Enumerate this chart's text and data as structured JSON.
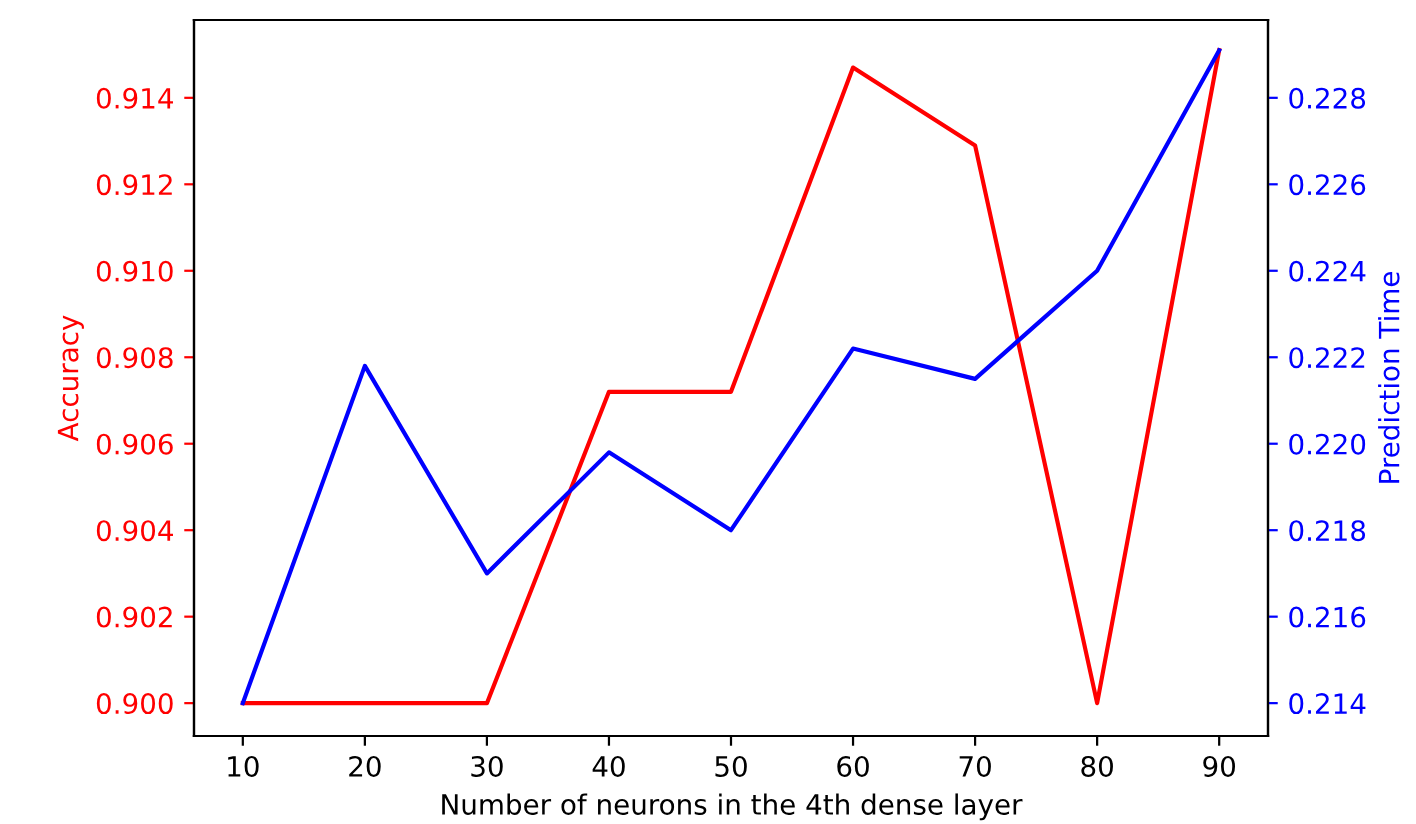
{
  "chart_data": {
    "type": "line",
    "xlabel": "Number of neurons in the 4th dense layer",
    "ylabel": "Accuracy",
    "y2label": "Prediction Time",
    "x": [
      10,
      20,
      30,
      40,
      50,
      60,
      70,
      80,
      90
    ],
    "series": [
      {
        "color": "#ff0000",
        "values": [
          0.9,
          0.9,
          0.9,
          0.9072,
          0.9072,
          0.9147,
          0.9129,
          0.9,
          0.9151
        ]
      },
      {
        "color": "#0000ff",
        "axis": "y2",
        "values": [
          0.214,
          0.2218,
          0.217,
          0.2198,
          0.218,
          0.2222,
          0.2215,
          0.224,
          0.2291
        ]
      }
    ],
    "xlim": [
      6,
      94
    ],
    "xticks": [
      10,
      20,
      30,
      40,
      50,
      60,
      70,
      80,
      90
    ],
    "ylim": [
      0.89924,
      0.9158
    ],
    "yticks": [
      {
        "value": 0.9,
        "label": "0.900"
      },
      {
        "value": 0.902,
        "label": "0.902"
      },
      {
        "value": 0.904,
        "label": "0.904"
      },
      {
        "value": 0.906,
        "label": "0.906"
      },
      {
        "value": 0.908,
        "label": "0.908"
      },
      {
        "value": 0.91,
        "label": "0.910"
      },
      {
        "value": 0.912,
        "label": "0.912"
      },
      {
        "value": 0.914,
        "label": "0.914"
      }
    ],
    "y2lim": [
      0.21324,
      0.2298
    ],
    "y2ticks": [
      0.214,
      0.216,
      0.218,
      {
        "value": 0.22,
        "label": "0.220"
      },
      0.222,
      0.224,
      0.226,
      0.228
    ],
    "grid": false,
    "legend": false
  }
}
